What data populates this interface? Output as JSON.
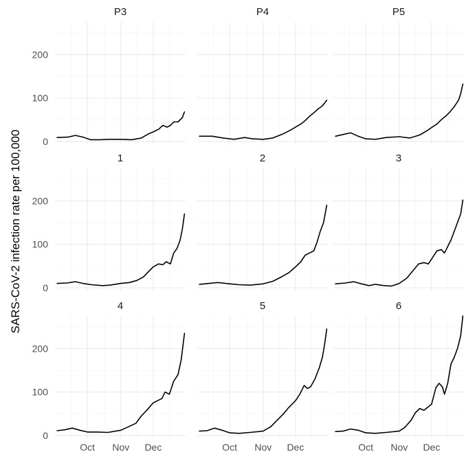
{
  "chart_data": {
    "type": "line",
    "layout": "facet-grid-3x3",
    "title": "",
    "xlabel": "",
    "ylabel": "SARS-CoV-2 infection rate per 100,000",
    "x_ticks": [
      "Oct",
      "Nov",
      "Dec"
    ],
    "x_tick_dates": [
      "2020-10-01",
      "2020-11-01",
      "2020-12-01"
    ],
    "x_range": [
      "2020-09-01",
      "2020-12-31"
    ],
    "ylim": [
      -8,
      275
    ],
    "y_ticks": [
      0,
      100,
      200
    ],
    "grid": true,
    "line_color": "#000000",
    "facets": [
      {
        "label": "P3",
        "x": [
          "2020-09-03",
          "2020-09-13",
          "2020-09-20",
          "2020-09-27",
          "2020-10-04",
          "2020-10-12",
          "2020-10-22",
          "2020-11-01",
          "2020-11-11",
          "2020-11-20",
          "2020-11-27",
          "2020-12-01",
          "2020-12-06",
          "2020-12-10",
          "2020-12-14",
          "2020-12-17",
          "2020-12-20",
          "2020-12-24",
          "2020-12-28",
          "2020-12-30"
        ],
        "y": [
          9,
          10,
          14,
          10,
          4,
          4,
          5,
          5,
          4,
          8,
          18,
          22,
          28,
          37,
          33,
          37,
          45,
          45,
          55,
          68
        ]
      },
      {
        "label": "P4",
        "x": [
          "2020-09-03",
          "2020-09-15",
          "2020-09-25",
          "2020-10-05",
          "2020-10-15",
          "2020-10-22",
          "2020-11-01",
          "2020-11-10",
          "2020-11-20",
          "2020-11-27",
          "2020-12-01",
          "2020-12-06",
          "2020-12-10",
          "2020-12-14",
          "2020-12-18",
          "2020-12-22",
          "2020-12-26",
          "2020-12-30"
        ],
        "y": [
          12,
          12,
          8,
          5,
          9,
          6,
          5,
          8,
          18,
          27,
          33,
          40,
          48,
          58,
          66,
          75,
          82,
          95
        ]
      },
      {
        "label": "P5",
        "x": [
          "2020-09-03",
          "2020-09-10",
          "2020-09-17",
          "2020-09-24",
          "2020-10-01",
          "2020-10-10",
          "2020-10-20",
          "2020-11-01",
          "2020-11-11",
          "2020-11-20",
          "2020-11-27",
          "2020-12-01",
          "2020-12-06",
          "2020-12-10",
          "2020-12-14",
          "2020-12-18",
          "2020-12-22",
          "2020-12-26",
          "2020-12-28",
          "2020-12-30"
        ],
        "y": [
          12,
          16,
          20,
          12,
          6,
          5,
          9,
          11,
          8,
          15,
          25,
          32,
          40,
          50,
          58,
          68,
          80,
          95,
          110,
          132
        ]
      },
      {
        "label": "1",
        "x": [
          "2020-09-03",
          "2020-09-12",
          "2020-09-20",
          "2020-09-27",
          "2020-10-05",
          "2020-10-15",
          "2020-10-22",
          "2020-11-01",
          "2020-11-09",
          "2020-11-16",
          "2020-11-22",
          "2020-11-27",
          "2020-12-01",
          "2020-12-06",
          "2020-12-10",
          "2020-12-13",
          "2020-12-17",
          "2020-12-20",
          "2020-12-23",
          "2020-12-26",
          "2020-12-28",
          "2020-12-30"
        ],
        "y": [
          10,
          11,
          14,
          10,
          7,
          5,
          6,
          10,
          12,
          17,
          25,
          38,
          48,
          55,
          53,
          60,
          55,
          80,
          90,
          110,
          135,
          170
        ]
      },
      {
        "label": "2",
        "x": [
          "2020-09-03",
          "2020-09-12",
          "2020-09-20",
          "2020-10-01",
          "2020-10-10",
          "2020-10-20",
          "2020-11-01",
          "2020-11-10",
          "2020-11-18",
          "2020-11-25",
          "2020-12-01",
          "2020-12-06",
          "2020-12-10",
          "2020-12-14",
          "2020-12-18",
          "2020-12-21",
          "2020-12-24",
          "2020-12-27",
          "2020-12-30"
        ],
        "y": [
          8,
          10,
          12,
          9,
          7,
          6,
          9,
          15,
          25,
          35,
          48,
          60,
          75,
          80,
          85,
          105,
          130,
          150,
          190
        ]
      },
      {
        "label": "3",
        "x": [
          "2020-09-03",
          "2020-09-12",
          "2020-09-20",
          "2020-09-27",
          "2020-10-04",
          "2020-10-10",
          "2020-10-18",
          "2020-10-25",
          "2020-11-01",
          "2020-11-08",
          "2020-11-14",
          "2020-11-19",
          "2020-11-24",
          "2020-11-28",
          "2020-12-02",
          "2020-12-06",
          "2020-12-10",
          "2020-12-13",
          "2020-12-16",
          "2020-12-19",
          "2020-12-22",
          "2020-12-25",
          "2020-12-28",
          "2020-12-30"
        ],
        "y": [
          9,
          11,
          14,
          9,
          5,
          8,
          5,
          4,
          10,
          22,
          40,
          55,
          58,
          55,
          70,
          85,
          88,
          80,
          95,
          110,
          130,
          150,
          170,
          202
        ]
      },
      {
        "label": "4",
        "x": [
          "2020-09-03",
          "2020-09-10",
          "2020-09-17",
          "2020-09-24",
          "2020-10-01",
          "2020-10-10",
          "2020-10-20",
          "2020-11-01",
          "2020-11-08",
          "2020-11-15",
          "2020-11-20",
          "2020-11-25",
          "2020-12-01",
          "2020-12-05",
          "2020-12-09",
          "2020-12-12",
          "2020-12-16",
          "2020-12-20",
          "2020-12-24",
          "2020-12-27",
          "2020-12-30"
        ],
        "y": [
          11,
          13,
          17,
          12,
          8,
          8,
          7,
          12,
          20,
          28,
          45,
          58,
          75,
          80,
          85,
          100,
          95,
          125,
          140,
          175,
          235
        ]
      },
      {
        "label": "5",
        "x": [
          "2020-09-03",
          "2020-09-10",
          "2020-09-17",
          "2020-09-24",
          "2020-10-01",
          "2020-10-10",
          "2020-10-20",
          "2020-11-01",
          "2020-11-08",
          "2020-11-14",
          "2020-11-20",
          "2020-11-25",
          "2020-12-01",
          "2020-12-05",
          "2020-12-09",
          "2020-12-12",
          "2020-12-15",
          "2020-12-19",
          "2020-12-23",
          "2020-12-26",
          "2020-12-28",
          "2020-12-30"
        ],
        "y": [
          10,
          11,
          17,
          12,
          6,
          5,
          7,
          10,
          20,
          35,
          50,
          65,
          80,
          95,
          115,
          108,
          112,
          130,
          155,
          180,
          210,
          245
        ]
      },
      {
        "label": "6",
        "x": [
          "2020-09-03",
          "2020-09-10",
          "2020-09-17",
          "2020-09-24",
          "2020-10-01",
          "2020-10-10",
          "2020-10-20",
          "2020-11-01",
          "2020-11-06",
          "2020-11-12",
          "2020-11-16",
          "2020-11-20",
          "2020-11-24",
          "2020-12-01",
          "2020-12-05",
          "2020-12-08",
          "2020-12-11",
          "2020-12-13",
          "2020-12-16",
          "2020-12-19",
          "2020-12-22",
          "2020-12-25",
          "2020-12-28",
          "2020-12-30"
        ],
        "y": [
          9,
          10,
          15,
          12,
          6,
          5,
          7,
          10,
          18,
          35,
          52,
          62,
          58,
          72,
          110,
          120,
          112,
          95,
          120,
          165,
          180,
          200,
          230,
          275
        ]
      }
    ]
  }
}
